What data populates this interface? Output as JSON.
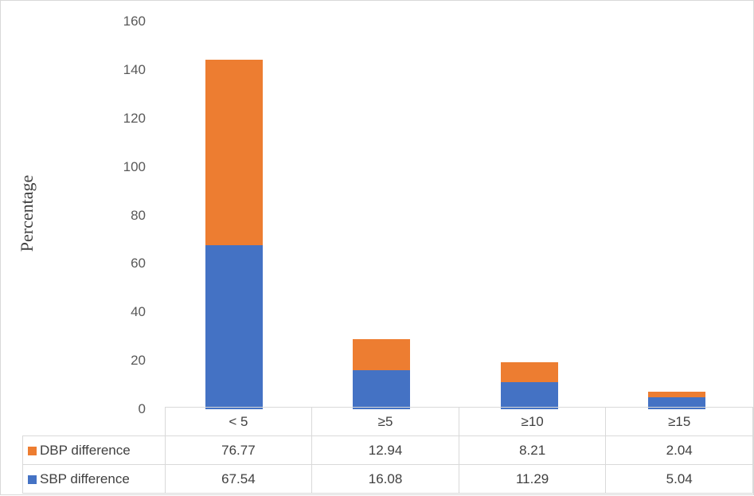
{
  "chart_data": {
    "type": "bar",
    "stacked": true,
    "title": "",
    "xlabel": "",
    "ylabel": "Percentage",
    "ylim": [
      0,
      160
    ],
    "yticks": [
      0,
      20,
      40,
      60,
      80,
      100,
      120,
      140,
      160
    ],
    "categories": [
      "< 5",
      "≥5",
      "≥10",
      "≥15"
    ],
    "series": [
      {
        "name": "SBP difference",
        "color": "#4472c4",
        "values": [
          67.54,
          16.08,
          11.29,
          5.04
        ]
      },
      {
        "name": "DBP difference",
        "color": "#ed7d31",
        "values": [
          76.77,
          12.94,
          8.21,
          2.04
        ]
      }
    ],
    "grid": false,
    "legend_position": "data-table",
    "data_table": true
  },
  "axis": {
    "ylabel": "Percentage",
    "ticks": [
      "0",
      "20",
      "40",
      "60",
      "80",
      "100",
      "120",
      "140",
      "160"
    ]
  },
  "table": {
    "categories": [
      "< 5",
      "≥5",
      "≥10",
      "≥15"
    ],
    "rows": [
      {
        "label": "DBP difference",
        "color": "#ed7d31",
        "values": [
          "76.77",
          "12.94",
          "8.21",
          "2.04"
        ]
      },
      {
        "label": "SBP difference",
        "color": "#4472c4",
        "values": [
          "67.54",
          "16.08",
          "11.29",
          "5.04"
        ]
      }
    ]
  }
}
